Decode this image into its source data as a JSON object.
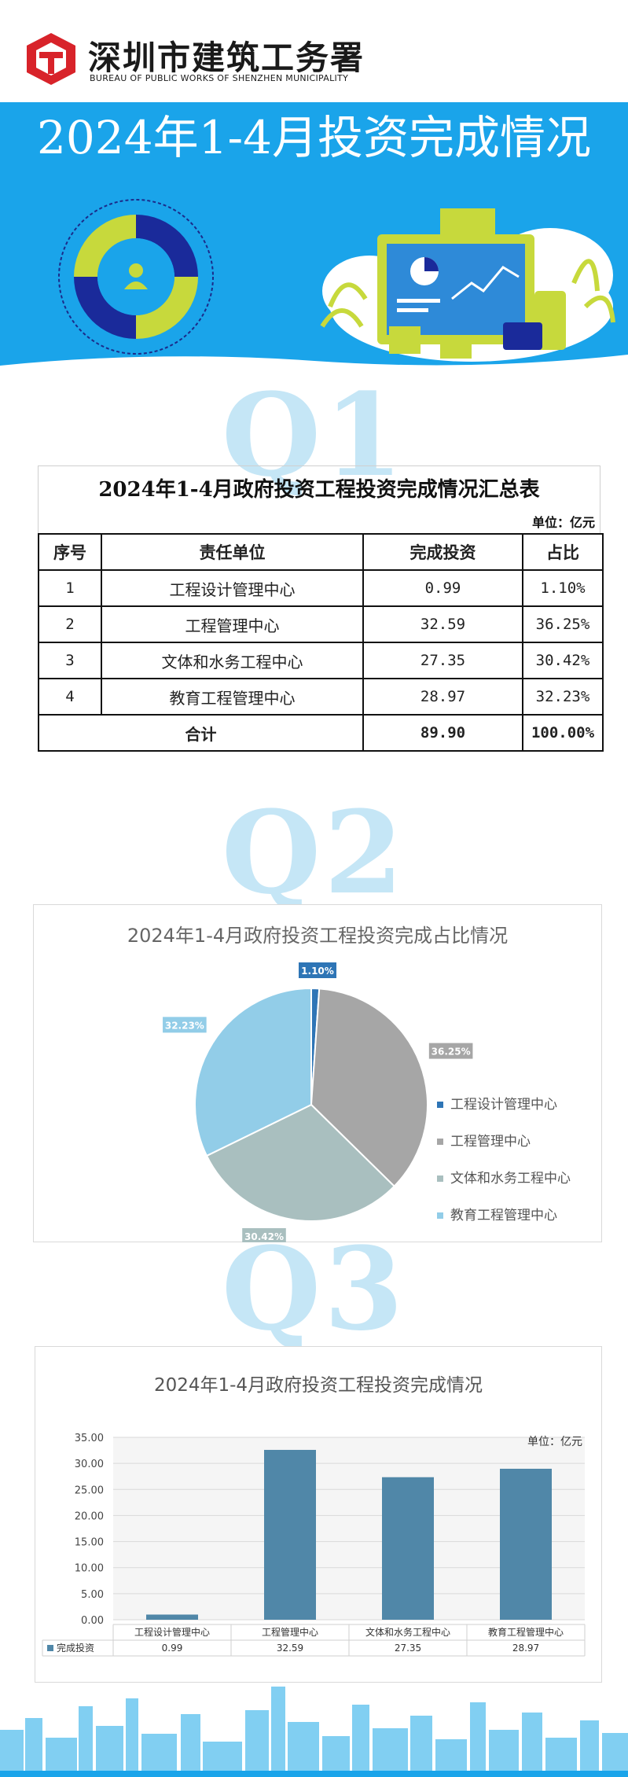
{
  "header": {
    "org_cn": "深圳市建筑工务署",
    "org_en": "BUREAU OF PUBLIC WORKS OF SHENZHEN MUNICIPALITY",
    "main_title": "2024年1-4月投资完成情况"
  },
  "sections": {
    "q1": "Q1",
    "q2": "Q2",
    "q3": "Q3"
  },
  "summary_table": {
    "title": "2024年1-4月政府投资工程投资完成情况汇总表",
    "unit": "单位：亿元",
    "headers": [
      "序号",
      "责任单位",
      "完成投资",
      "占比"
    ],
    "rows": [
      [
        "1",
        "工程设计管理中心",
        "0.99",
        "1.10%"
      ],
      [
        "2",
        "工程管理中心",
        "32.59",
        "36.25%"
      ],
      [
        "3",
        "文体和水务工程中心",
        "27.35",
        "30.42%"
      ],
      [
        "4",
        "教育工程管理中心",
        "28.97",
        "32.23%"
      ]
    ],
    "total": [
      "合计",
      "89.90",
      "100.00%"
    ]
  },
  "colors": {
    "header_blue": "#1aa4ea",
    "pie": [
      "#2e75b6",
      "#a6a6a6",
      "#a9bfbf",
      "#92cde8"
    ],
    "bar": "#5087a8"
  },
  "chart_data": [
    {
      "type": "pie",
      "title": "2024年1-4月政府投资工程投资完成占比情况",
      "categories": [
        "工程设计管理中心",
        "工程管理中心",
        "文体和水务工程中心",
        "教育工程管理中心"
      ],
      "values": [
        1.1,
        36.25,
        30.42,
        32.23
      ],
      "data_labels": [
        "1.10%",
        "36.25%",
        "30.42%",
        "32.23%"
      ],
      "legend": "right"
    },
    {
      "type": "bar",
      "title": "2024年1-4月政府投资工程投资完成情况",
      "unit_label": "单位：亿元",
      "categories": [
        "工程设计管理中心",
        "工程管理中心",
        "文体和水务工程中心",
        "教育工程管理中心"
      ],
      "series": [
        {
          "name": "完成投资",
          "values": [
            0.99,
            32.59,
            27.35,
            28.97
          ]
        }
      ],
      "value_labels": [
        "0.99",
        "32.59",
        "27.35",
        "28.97"
      ],
      "ylim": [
        0,
        35
      ],
      "yticks": [
        "35.00",
        "30.00",
        "25.00",
        "20.00",
        "15.00",
        "10.00",
        "5.00",
        "0.00"
      ],
      "grid": true,
      "data_table": true
    }
  ]
}
